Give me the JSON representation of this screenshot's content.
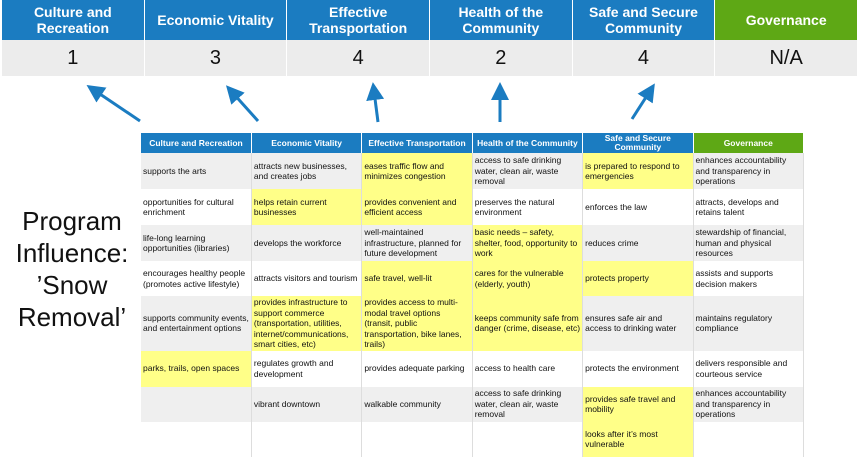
{
  "columns": [
    {
      "header": "Culture and Recreation",
      "score": "1"
    },
    {
      "header": "Economic Vitality",
      "score": "3"
    },
    {
      "header": "Effective Transportation",
      "score": "4"
    },
    {
      "header": "Health of the Community",
      "score": "2"
    },
    {
      "header": "Safe and Secure Community",
      "score": "4"
    },
    {
      "header": "Governance",
      "score": "N/A"
    }
  ],
  "title": "Program Influence: ’Snow Removal’",
  "colors": {
    "header_blue": "#1b7cc1",
    "governance_green": "#5ea815",
    "highlight": "#ffff88",
    "arrow": "#1b7cc1"
  },
  "rows": [
    [
      {
        "t": "supports the arts"
      },
      {
        "t": "attracts new businesses, and creates jobs"
      },
      {
        "t": "eases traffic flow and minimizes congestion",
        "h": true
      },
      {
        "t": "access to safe drinking water, clean air, waste removal"
      },
      {
        "t": "is prepared to respond to emergencies",
        "h": true
      },
      {
        "t": "enhances accountability and transparency in operations"
      }
    ],
    [
      {
        "t": "opportunities for cultural enrichment"
      },
      {
        "t": "helps retain current businesses",
        "h": true
      },
      {
        "t": "provides convenient and efficient access",
        "h": true
      },
      {
        "t": "preserves the natural environment"
      },
      {
        "t": "enforces the law"
      },
      {
        "t": "attracts, develops and retains talent"
      }
    ],
    [
      {
        "t": "life-long learning opportunities (libraries)"
      },
      {
        "t": "develops the workforce"
      },
      {
        "t": "well-maintained infrastructure, planned for future development"
      },
      {
        "t": "basic needs – safety, shelter, food, opportunity to work",
        "h": true
      },
      {
        "t": "reduces crime"
      },
      {
        "t": "stewardship of financial, human and physical resources"
      }
    ],
    [
      {
        "t": "encourages healthy people (promotes active lifestyle)"
      },
      {
        "t": "attracts visitors and tourism"
      },
      {
        "t": "safe travel, well-lit",
        "h": true
      },
      {
        "t": "cares for the vulnerable (elderly, youth)",
        "h": true
      },
      {
        "t": "protects property",
        "h": true
      },
      {
        "t": "assists and supports decision makers"
      }
    ],
    [
      {
        "t": "supports community events, and entertainment options"
      },
      {
        "t": "provides infrastructure to support commerce (transportation, utilities, internet/communications, smart cities, etc)",
        "h": true
      },
      {
        "t": "provides access to multi-modal travel options (transit, public transportation, bike lanes, trails)",
        "h": true
      },
      {
        "t": "keeps community safe from danger (crime, disease, etc)",
        "h": true
      },
      {
        "t": "ensures safe air and access to drinking water"
      },
      {
        "t": "maintains regulatory compliance"
      }
    ],
    [
      {
        "t": "parks, trails, open spaces",
        "h": true
      },
      {
        "t": "regulates growth and development"
      },
      {
        "t": "provides adequate parking"
      },
      {
        "t": "access to health care"
      },
      {
        "t": "protects the environment"
      },
      {
        "t": "delivers responsible and courteous service"
      }
    ],
    [
      {
        "t": ""
      },
      {
        "t": "vibrant downtown"
      },
      {
        "t": "walkable community"
      },
      {
        "t": "access to safe drinking water, clean air, waste removal"
      },
      {
        "t": "provides safe travel and mobility",
        "h": true
      },
      {
        "t": "enhances accountability and transparency in operations"
      }
    ],
    [
      {
        "t": ""
      },
      {
        "t": ""
      },
      {
        "t": ""
      },
      {
        "t": ""
      },
      {
        "t": "looks after it’s most vulnerable",
        "h": true
      },
      {
        "t": ""
      }
    ]
  ]
}
